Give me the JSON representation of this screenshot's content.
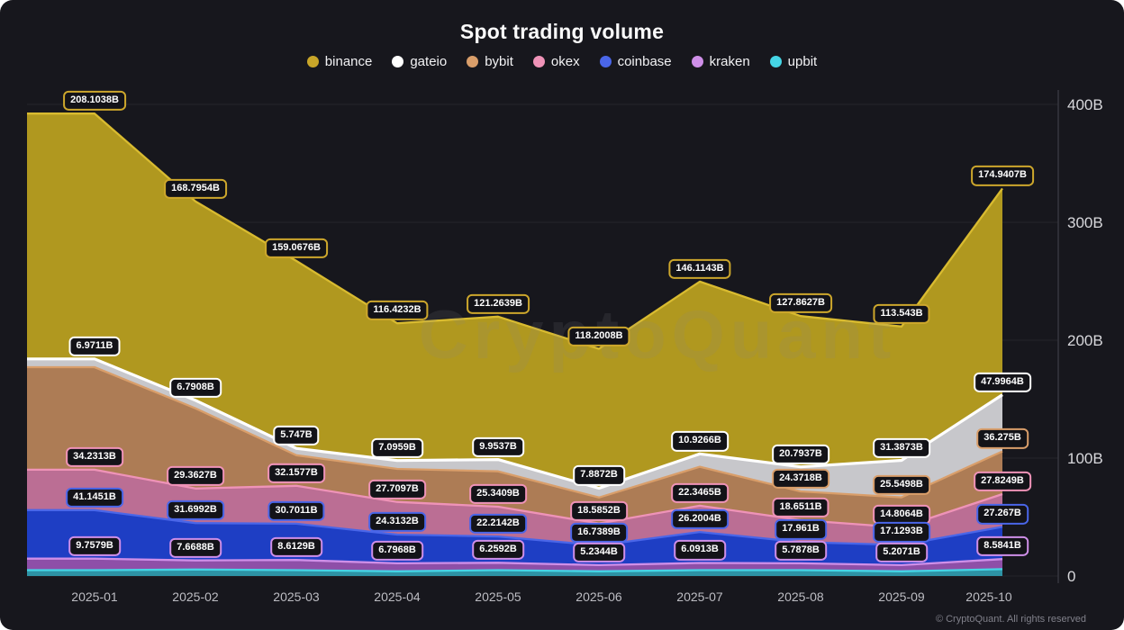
{
  "card": {
    "title": "Spot trading volume",
    "watermark": "CryptoQuant",
    "footer": "© CryptoQuant. All rights reserved"
  },
  "colors": {
    "background": "#17171d",
    "grid": "#26262c",
    "axis": "#36363e",
    "y_tick_text": "#d8d8dc",
    "x_tick_text": "#bcbcc2",
    "pill_bg": "#131318",
    "pill_text": "#ffffff"
  },
  "chart_data": {
    "type": "area",
    "stacked": true,
    "title": "Spot trading volume",
    "legend_position": "top",
    "grid": "horizontal",
    "categories": [
      "2025-01",
      "2025-02",
      "2025-03",
      "2025-04",
      "2025-05",
      "2025-06",
      "2025-07",
      "2025-08",
      "2025-09",
      "2025-10"
    ],
    "y_ticks": {
      "labels": [
        "400B",
        "300B",
        "200B",
        "100B",
        "0"
      ],
      "values": [
        400,
        300,
        200,
        100,
        0
      ]
    },
    "ylim": [
      0,
      430
    ],
    "unit": "B",
    "stack_order_bottom_to_top": [
      "upbit",
      "kraken",
      "coinbase",
      "okex",
      "bybit",
      "gateio",
      "binance"
    ],
    "estimated_note": "values with null point_labels have no data label in the image; magnitudes estimated from band thickness",
    "series": [
      {
        "name": "binance",
        "fill": "#b0981f",
        "edge": "#d9bb30",
        "values": [
          208.1038,
          168.7954,
          159.0676,
          116.4232,
          121.2639,
          118.2008,
          146.1143,
          127.8627,
          113.543,
          174.9407
        ],
        "point_labels": [
          "208.1038B",
          "168.7954B",
          "159.0676B",
          "116.4232B",
          "121.2639B",
          "118.2008B",
          "146.1143B",
          "127.8627B",
          "113.543B",
          "174.9407B"
        ]
      },
      {
        "name": "gateio",
        "fill": "#c7c7cb",
        "edge": "#ffffff",
        "values": [
          6.9711,
          6.7908,
          5.747,
          7.0959,
          9.9537,
          7.8872,
          10.9266,
          20.7937,
          31.3873,
          47.9964
        ],
        "point_labels": [
          "6.9711B",
          "6.7908B",
          "5.747B",
          "7.0959B",
          "9.9537B",
          "7.8872B",
          "10.9266B",
          "20.7937B",
          "31.3873B",
          "47.9964B"
        ]
      },
      {
        "name": "bybit",
        "fill": "#ad7c55",
        "edge": "#d99e6a",
        "values": [
          87,
          68,
          26,
          28,
          30,
          22,
          33,
          24.3718,
          25.5498,
          36.275
        ],
        "point_labels": [
          null,
          null,
          null,
          null,
          null,
          null,
          null,
          "24.3718B",
          "25.5498B",
          "36.275B"
        ]
      },
      {
        "name": "okex",
        "fill": "#bb6e94",
        "edge": "#ef93b8",
        "values": [
          34.2313,
          29.3627,
          32.1577,
          27.7097,
          25.3409,
          18.5852,
          22.3465,
          18.6511,
          14.8064,
          27.8249
        ],
        "point_labels": [
          "34.2313B",
          "29.3627B",
          "32.1577B",
          "27.7097B",
          "25.3409B",
          "18.5852B",
          "22.3465B",
          "18.6511B",
          "14.8064B",
          "27.8249B"
        ]
      },
      {
        "name": "coinbase",
        "fill": "#1e3ec4",
        "edge": "#4a66e8",
        "values": [
          41.1451,
          31.6992,
          30.7011,
          24.3132,
          22.2142,
          16.7389,
          26.2004,
          17.961,
          17.1293,
          27.267
        ],
        "point_labels": [
          "41.1451B",
          "31.6992B",
          "30.7011B",
          "24.3132B",
          "22.2142B",
          "16.7389B",
          "26.2004B",
          "17.961B",
          "17.1293B",
          "27.267B"
        ]
      },
      {
        "name": "kraken",
        "fill": "#8e4fa8",
        "edge": "#cf8fe8",
        "values": [
          9.7579,
          7.6688,
          8.6129,
          6.7968,
          6.2592,
          5.2344,
          6.0913,
          5.7878,
          5.2071,
          8.5841
        ],
        "point_labels": [
          "9.7579B",
          "7.6688B",
          "8.6129B",
          "6.7968B",
          "6.2592B",
          "5.2344B",
          "6.0913B",
          "5.7878B",
          "5.2071B",
          "8.5841B"
        ]
      },
      {
        "name": "upbit",
        "fill": "#2d93a5",
        "edge": "#45d5e5",
        "values": [
          5,
          5.5,
          5,
          4,
          5,
          4,
          5,
          5,
          4,
          5.8
        ],
        "point_labels": [
          null,
          null,
          null,
          null,
          null,
          null,
          null,
          null,
          null,
          null
        ]
      }
    ]
  }
}
